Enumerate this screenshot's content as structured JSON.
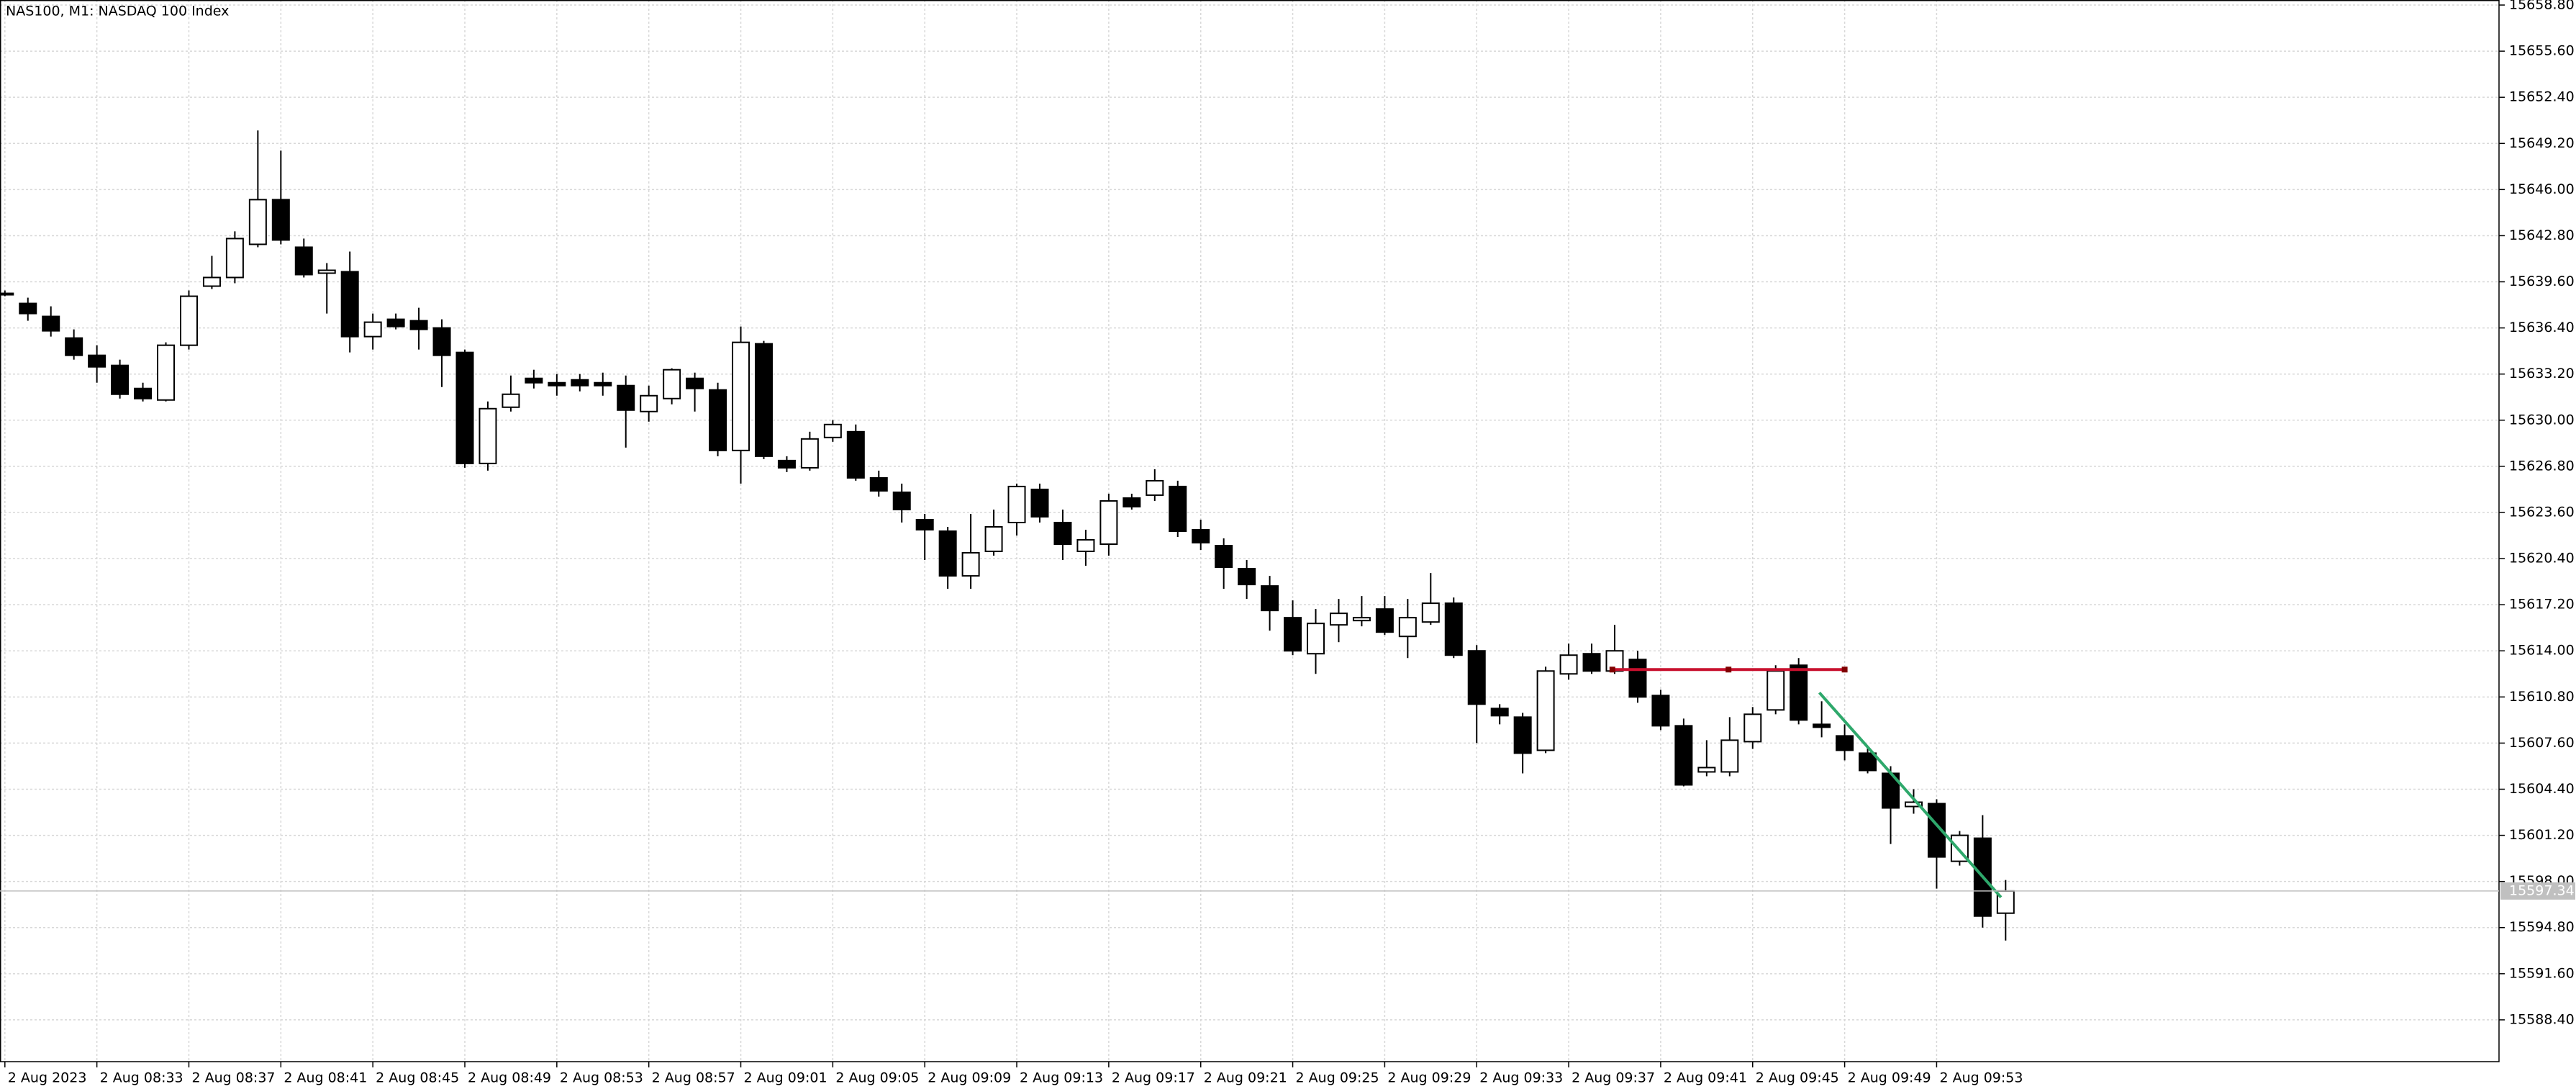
{
  "chart_data": {
    "type": "candlestick",
    "title": "NAS100, M1:  NASDAQ 100 Index",
    "categories": [
      "2 Aug 2023",
      null,
      null,
      null,
      "2 Aug 08:33",
      null,
      null,
      null,
      "2 Aug 08:37",
      null,
      null,
      null,
      "2 Aug 08:41",
      null,
      null,
      null,
      "2 Aug 08:45",
      null,
      null,
      null,
      "2 Aug 08:49",
      null,
      null,
      null,
      "2 Aug 08:53",
      null,
      null,
      null,
      "2 Aug 08:57",
      null,
      null,
      null,
      "2 Aug 09:01",
      null,
      null,
      null,
      "2 Aug 09:05",
      null,
      null,
      null,
      "2 Aug 09:09",
      null,
      null,
      null,
      "2 Aug 09:13",
      null,
      null,
      null,
      "2 Aug 09:17",
      null,
      null,
      null,
      "2 Aug 09:21",
      null,
      null,
      null,
      "2 Aug 09:25",
      null,
      null,
      null,
      "2 Aug 09:29",
      null,
      null,
      null,
      "2 Aug 09:33",
      null,
      null,
      null,
      "2 Aug 09:37",
      null,
      null,
      null,
      "2 Aug 09:41",
      null,
      null,
      null,
      "2 Aug 09:45",
      null,
      null,
      null,
      "2 Aug 09:49",
      null,
      null,
      null,
      "2 Aug 09:53",
      null,
      null,
      null
    ],
    "open": [
      15638.8,
      15638.1,
      15637.2,
      15635.7,
      15634.5,
      15633.8,
      15632.2,
      15631.4,
      15635.2,
      15639.3,
      15639.9,
      15642.2,
      15645.3,
      15642.0,
      15640.2,
      15640.3,
      15635.8,
      15637.0,
      15636.9,
      15636.4,
      15634.7,
      15627.0,
      15630.9,
      15632.9,
      15632.6,
      15632.8,
      15632.6,
      15632.4,
      15630.6,
      15631.5,
      15632.9,
      15632.1,
      15627.9,
      15635.3,
      15627.2,
      15626.7,
      15628.8,
      15629.2,
      15626.0,
      15625.0,
      15623.1,
      15622.3,
      15619.2,
      15620.9,
      15622.9,
      15625.2,
      15622.9,
      15620.9,
      15621.4,
      15624.6,
      15624.8,
      15625.4,
      15622.4,
      15621.3,
      15619.7,
      15618.5,
      15616.3,
      15613.8,
      15615.8,
      15616.1,
      15616.9,
      15615.0,
      15616.0,
      15617.3,
      15614.0,
      15610.0,
      15609.4,
      15607.1,
      15612.4,
      15613.8,
      15612.6,
      15613.4,
      15610.9,
      15608.8,
      15605.6,
      15605.6,
      15607.7,
      15609.9,
      15613.0,
      15608.9,
      15608.1,
      15606.9,
      15605.5,
      15603.2,
      15603.4,
      15599.4,
      15601.0,
      15595.8
    ],
    "high": [
      15639.0,
      15638.5,
      15637.9,
      15636.3,
      15635.2,
      15634.2,
      15632.6,
      15635.4,
      15639.0,
      15641.4,
      15643.1,
      15650.1,
      15648.7,
      15642.6,
      15640.9,
      15641.7,
      15637.4,
      15637.4,
      15637.8,
      15637.0,
      15634.9,
      15631.3,
      15633.1,
      15633.5,
      15633.2,
      15633.2,
      15633.3,
      15633.1,
      15632.4,
      15633.6,
      15633.3,
      15632.6,
      15636.5,
      15635.5,
      15627.5,
      15629.2,
      15630.0,
      15629.7,
      15626.5,
      15625.6,
      15623.5,
      15622.6,
      15623.5,
      15623.8,
      15625.6,
      15625.6,
      15623.8,
      15622.4,
      15624.9,
      15624.9,
      15626.6,
      15625.8,
      15623.1,
      15621.8,
      15620.3,
      15619.2,
      15617.5,
      15616.9,
      15617.6,
      15617.8,
      15617.8,
      15617.6,
      15619.4,
      15617.7,
      15614.4,
      15610.3,
      15609.7,
      15612.9,
      15614.5,
      15614.5,
      15615.8,
      15614.0,
      15611.3,
      15609.3,
      15607.8,
      15609.4,
      15610.1,
      15613.0,
      15613.5,
      15610.5,
      15608.9,
      15607.3,
      15606.0,
      15604.4,
      15603.7,
      15601.5,
      15602.6,
      15598.1
    ],
    "low": [
      15638.6,
      15636.9,
      15635.8,
      15634.2,
      15632.6,
      15631.5,
      15631.3,
      15631.3,
      15634.9,
      15639.1,
      15639.5,
      15642.0,
      15642.2,
      15639.9,
      15637.4,
      15634.7,
      15634.9,
      15636.3,
      15634.9,
      15632.3,
      15626.7,
      15626.5,
      15630.6,
      15632.2,
      15631.7,
      15632.0,
      15631.7,
      15628.1,
      15629.9,
      15631.1,
      15630.6,
      15627.5,
      15625.6,
      15627.3,
      15626.4,
      15626.5,
      15628.5,
      15625.8,
      15624.7,
      15622.9,
      15620.3,
      15618.3,
      15618.3,
      15620.6,
      15622.0,
      15622.9,
      15620.3,
      15619.9,
      15620.6,
      15623.8,
      15624.4,
      15621.9,
      15621.0,
      15618.3,
      15617.6,
      15615.4,
      15613.7,
      15612.4,
      15614.6,
      15615.7,
      15615.1,
      15613.5,
      15615.8,
      15613.5,
      15607.6,
      15608.9,
      15605.5,
      15606.9,
      15612.0,
      15612.4,
      15612.4,
      15610.4,
      15608.5,
      15604.6,
      15605.3,
      15605.3,
      15607.2,
      15609.6,
      15608.9,
      15608.0,
      15606.4,
      15605.5,
      15600.6,
      15602.7,
      15597.5,
      15599.1,
      15594.8,
      15593.9
    ],
    "close": [
      15638.8,
      15637.4,
      15636.2,
      15634.5,
      15633.7,
      15631.8,
      15631.5,
      15635.2,
      15638.6,
      15639.9,
      15642.6,
      15645.3,
      15642.5,
      15640.1,
      15640.4,
      15635.8,
      15636.8,
      15636.5,
      15636.3,
      15634.5,
      15627.0,
      15630.8,
      15631.8,
      15632.6,
      15632.4,
      15632.4,
      15632.4,
      15630.7,
      15631.7,
      15633.5,
      15632.2,
      15627.9,
      15635.4,
      15627.5,
      15626.7,
      15628.7,
      15629.7,
      15626.0,
      15625.1,
      15623.8,
      15622.4,
      15619.2,
      15620.8,
      15622.6,
      15625.4,
      15623.3,
      15621.4,
      15621.7,
      15624.4,
      15624.0,
      15625.8,
      15622.3,
      15621.5,
      15619.8,
      15618.6,
      15616.8,
      15614.0,
      15615.9,
      15616.6,
      15616.3,
      15615.3,
      15616.3,
      15617.3,
      15613.7,
      15610.3,
      15609.5,
      15606.9,
      15612.6,
      15613.7,
      15612.6,
      15614.0,
      15610.8,
      15608.8,
      15604.7,
      15605.9,
      15607.8,
      15609.6,
      15612.6,
      15609.2,
      15608.7,
      15607.1,
      15605.7,
      15603.1,
      15603.5,
      15599.7,
      15601.2,
      15595.6,
      15597.34
    ],
    "up_color": "#ffffff",
    "down_color": "#000000",
    "wick_color": "#000000",
    "bid": 15597.34,
    "bid_color": "#c0c0c0",
    "drawings": [
      {
        "color": "#c8102e",
        "x": [
          69.9,
          80.0
        ],
        "y": [
          15612.7,
          15612.7
        ]
      },
      {
        "color": "#2ea86b",
        "x": [
          78.9,
          86.8
        ],
        "y": [
          15611.1,
          15596.9
        ]
      }
    ],
    "ylim": [
      15585.5,
      15659.15
    ],
    "yticks": [
      {
        "value": 15658.8,
        "label": "15658.80"
      },
      {
        "value": 15655.6,
        "label": "15655.60"
      },
      {
        "value": 15652.4,
        "label": "15652.40"
      },
      {
        "value": 15649.2,
        "label": "15649.20"
      },
      {
        "value": 15646.0,
        "label": "15646.00"
      },
      {
        "value": 15642.8,
        "label": "15642.80"
      },
      {
        "value": 15639.6,
        "label": "15639.60"
      },
      {
        "value": 15636.4,
        "label": "15636.40"
      },
      {
        "value": 15633.2,
        "label": "15633.20"
      },
      {
        "value": 15630.0,
        "label": "15630.00"
      },
      {
        "value": 15626.8,
        "label": "15626.80"
      },
      {
        "value": 15623.6,
        "label": "15623.60"
      },
      {
        "value": 15620.4,
        "label": "15620.40"
      },
      {
        "value": 15617.2,
        "label": "15617.20"
      },
      {
        "value": 15614.0,
        "label": "15614.00"
      },
      {
        "value": 15610.8,
        "label": "15610.80"
      },
      {
        "value": 15607.6,
        "label": "15607.60"
      },
      {
        "value": 15604.4,
        "label": "15604.40"
      },
      {
        "value": 15601.2,
        "label": "15601.20"
      },
      {
        "value": 15598.0,
        "label": "15598.00"
      },
      {
        "value": 15594.8,
        "label": "15594.80"
      },
      {
        "value": 15591.6,
        "label": "15591.60"
      },
      {
        "value": 15588.4,
        "label": "15588.40"
      }
    ],
    "grid": true
  }
}
